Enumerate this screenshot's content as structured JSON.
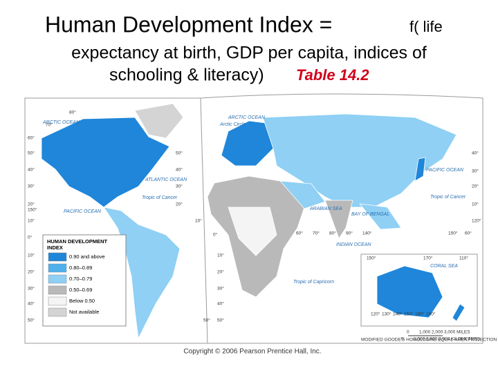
{
  "title": {
    "main": "Human Development Index =",
    "small": "f( life",
    "line2": "expectancy at birth, GDP per capita, indices of",
    "line3": "schooling & literacy)",
    "ref": "Table 14.2"
  },
  "map": {
    "legend": {
      "title": [
        "HUMAN DEVELOPMENT",
        "INDEX"
      ],
      "items": [
        {
          "label": "0.90 and above",
          "color": "#1f86d9"
        },
        {
          "label": "0.80–0.89",
          "color": "#4fb0ec"
        },
        {
          "label": "0.70–0.79",
          "color": "#8fd0f4"
        },
        {
          "label": "0.50–0.69",
          "color": "#b9b9b9"
        },
        {
          "label": "Below 0.50",
          "color": "#f4f4f4"
        },
        {
          "label": "Not available",
          "color": "#d4d4d4"
        }
      ]
    },
    "labels": [
      "ARCTIC OCEAN",
      "ARCTIC OCEAN",
      "Arctic Circle",
      "ATLANTIC OCEAN",
      "Tropic of Cancer",
      "PACIFIC OCEAN",
      "ARABIAN SEA",
      "BAY OF BENGAL",
      "INDIAN OCEAN",
      "PACIFIC OCEAN",
      "Tropic of Cancer",
      "Tropic of Capricorn",
      "CORAL SEA"
    ],
    "degree_labels": [
      "80°",
      "70°",
      "60°",
      "50°",
      "40°",
      "30°",
      "20°",
      "150°",
      "10°",
      "0°",
      "10°",
      "20°",
      "30°",
      "40°",
      "50°",
      "50°",
      "40°",
      "30°",
      "20°",
      "10°",
      "0°",
      "10°",
      "20°",
      "30°",
      "40°",
      "50°",
      "50°",
      "60°",
      "70°",
      "80°",
      "90°",
      "140°",
      "150°",
      "60°",
      "40°",
      "30°",
      "20°",
      "10°",
      "120°",
      "150°",
      "170°",
      "110°",
      "120°",
      "130°",
      "140°",
      "150°",
      "160°",
      "180°"
    ],
    "scale": {
      "miles": [
        "0",
        "1,000",
        "2,000",
        "3,000 MILES"
      ],
      "km": [
        "0",
        "1,000",
        "2,000",
        "3,000 KILOMETERS"
      ]
    },
    "projection": "MODIFIED GOODE'S HOMOLOSINE EQUAL-AREA PROJECTION"
  },
  "copyright": "Copyright © 2006 Pearson Prentice Hall, Inc."
}
